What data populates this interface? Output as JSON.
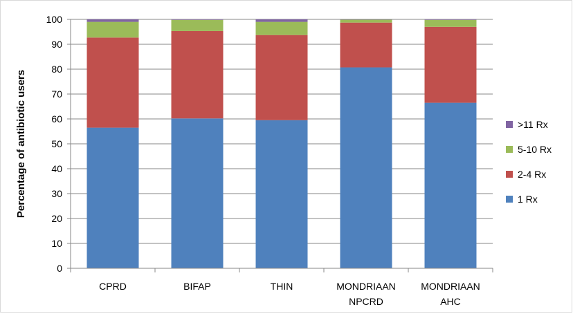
{
  "chart_data": {
    "type": "bar",
    "stacked": true,
    "title": "",
    "xlabel": "",
    "ylabel": "Percentage of antibiotic users",
    "ylim": [
      0,
      100
    ],
    "yticks": [
      0,
      10,
      20,
      30,
      40,
      50,
      60,
      70,
      80,
      90,
      100
    ],
    "grid": true,
    "legend_position": "right",
    "categories": [
      [
        "CPRD"
      ],
      [
        "BIFAP"
      ],
      [
        "THIN"
      ],
      [
        "MONDRIAAN",
        "NPCRD"
      ],
      [
        "MONDRIAAN",
        "AHC"
      ]
    ],
    "series": [
      {
        "name": "1 Rx",
        "color": "#4F81BD",
        "values": [
          56.5,
          60.2,
          59.5,
          80.7,
          66.5
        ]
      },
      {
        "name": "2-4 Rx",
        "color": "#C0504D",
        "values": [
          36.2,
          35.1,
          34.2,
          18.0,
          30.5
        ]
      },
      {
        "name": "5-10 Rx",
        "color": "#9BBB59",
        "values": [
          6.3,
          4.5,
          5.3,
          1.2,
          2.8
        ]
      },
      {
        "name": ">11 Rx",
        "color": "#8064A2",
        "values": [
          1.0,
          0.2,
          1.0,
          0.1,
          0.2
        ]
      }
    ]
  }
}
